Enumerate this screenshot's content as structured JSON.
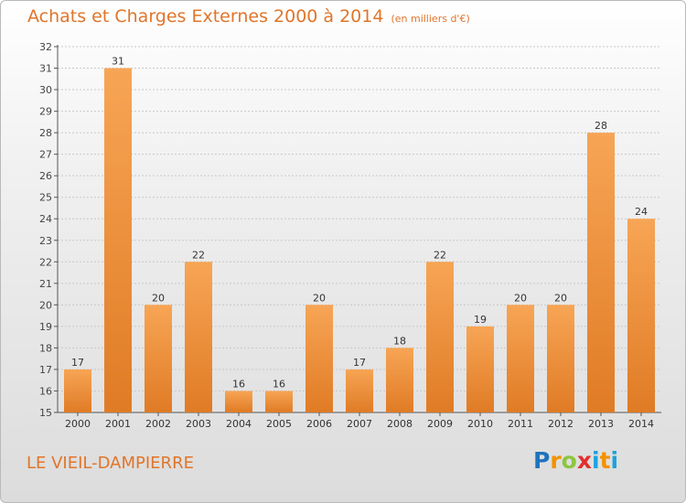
{
  "header": {
    "title": "Achats et Charges Externes 2000 à 2014",
    "unit": "(en milliers d'€)"
  },
  "footer": {
    "commune": "LE VIEIL-DAMPIERRE",
    "logo": {
      "p": "P",
      "r": "r",
      "o": "o",
      "x": "x",
      "i1": "i",
      "t": "t",
      "i2": "i"
    }
  },
  "colors": {
    "title": "#e0752a",
    "bar_light": "#f7a555",
    "bar_dark": "#e07b25",
    "grid": "#c8c8c8",
    "logo_p": "#1e73be",
    "logo_r": "#f39200",
    "logo_o": "#8cc63e",
    "logo_x": "#e0302e",
    "logo_i": "#1aa3e0",
    "logo_t": "#f39200"
  },
  "chart_data": {
    "type": "bar",
    "categories": [
      "2000",
      "2001",
      "2002",
      "2003",
      "2004",
      "2005",
      "2006",
      "2007",
      "2008",
      "2009",
      "2010",
      "2011",
      "2012",
      "2013",
      "2014"
    ],
    "values": [
      17,
      31,
      20,
      22,
      16,
      16,
      20,
      17,
      18,
      22,
      19,
      20,
      20,
      28,
      24
    ],
    "value_labels": [
      "17",
      "31",
      "20",
      "22",
      "16",
      "16",
      "20",
      "17",
      "18",
      "22",
      "19",
      "20",
      "20",
      "28",
      "24"
    ],
    "yticks": [
      "15",
      "16",
      "17",
      "18",
      "19",
      "20",
      "21",
      "22",
      "23",
      "24",
      "25",
      "26",
      "27",
      "28",
      "29",
      "30",
      "31",
      "32"
    ],
    "ylim": [
      15,
      32
    ],
    "grid": true,
    "xlabel": "",
    "ylabel": ""
  }
}
